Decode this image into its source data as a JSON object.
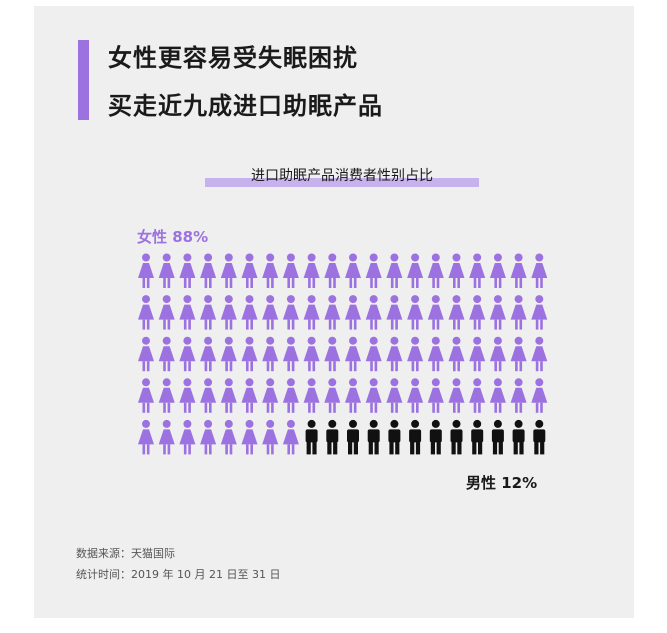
{
  "title_lines": [
    "女性更容易受失眠困扰",
    "买走近九成进口助眠产品"
  ],
  "chart_data": {
    "type": "pictogram",
    "title": "进口助眠产品消费者性别占比",
    "series": [
      {
        "name": "女性",
        "value": 88,
        "label": "女性 88%",
        "color": "#9b72e0"
      },
      {
        "name": "男性",
        "value": 12,
        "label": "男性 12%",
        "color": "#111111"
      }
    ],
    "total_icons": 100,
    "rows": 5,
    "columns": 20
  },
  "footer": {
    "source": "数据来源：天猫国际",
    "period": "统计时间：2019 年 10 月 21 日至 31 日"
  },
  "colors": {
    "accent": "#9b72e0",
    "highlight": "#c6b2ec",
    "background": "#efefef"
  }
}
